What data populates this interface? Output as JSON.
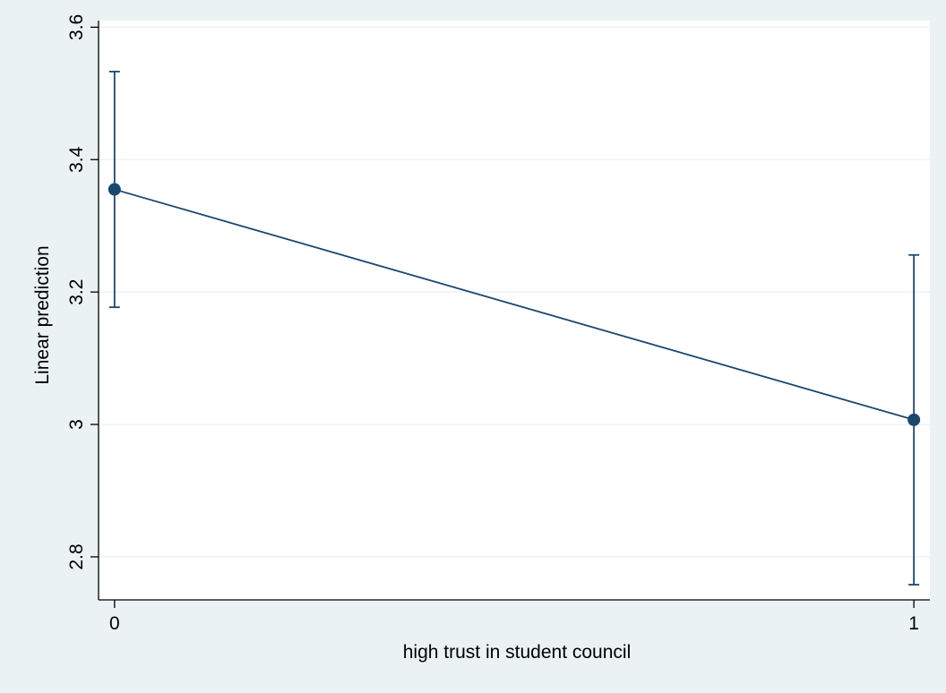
{
  "chart_data": {
    "type": "line",
    "title": "",
    "xlabel": "high trust in student council",
    "ylabel": "Linear prediction",
    "x": [
      0,
      1
    ],
    "x_ticks": [
      {
        "value": 0,
        "label": "0"
      },
      {
        "value": 1,
        "label": "1"
      }
    ],
    "y_ticks": [
      {
        "value": 2.8,
        "label": "2.8"
      },
      {
        "value": 3.0,
        "label": "3"
      },
      {
        "value": 3.2,
        "label": "3.2"
      },
      {
        "value": 3.4,
        "label": "3.4"
      },
      {
        "value": 3.6,
        "label": "3.6"
      }
    ],
    "xlim": [
      -0.02,
      1.02
    ],
    "ylim": [
      2.735,
      3.61
    ],
    "grid": true,
    "legend": "none",
    "series": [
      {
        "values": [
          3.355,
          3.007
        ],
        "ci_lower": [
          3.177,
          2.758
        ],
        "ci_upper": [
          3.533,
          3.256
        ]
      }
    ],
    "colors": {
      "background": "#eaf2f3",
      "plot_background": "#ffffff",
      "series": "#1a476f",
      "grid": "#eaf2f3",
      "axis": "#000000"
    }
  }
}
